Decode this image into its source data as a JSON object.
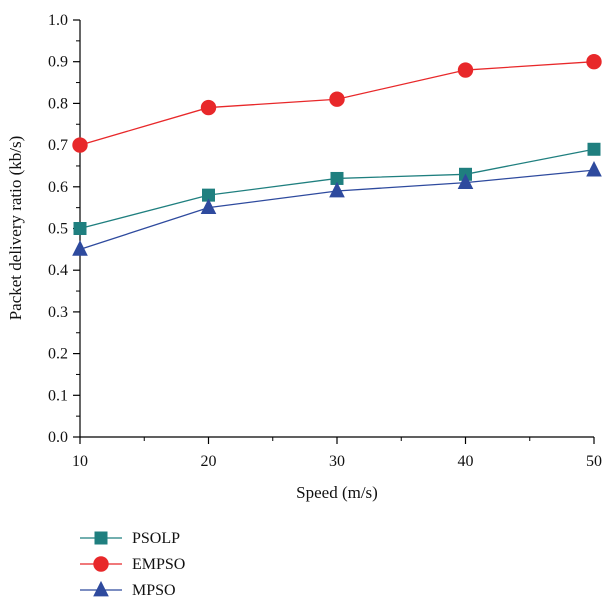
{
  "chart_data": {
    "type": "line",
    "title": "",
    "xlabel": "Speed (m/s)",
    "ylabel": "Packet delivery ratio (kb/s)",
    "x": [
      10,
      20,
      30,
      40,
      50
    ],
    "xlim": [
      10,
      50
    ],
    "ylim": [
      0.0,
      1.0
    ],
    "x_ticks": [
      "10",
      "20",
      "30",
      "40",
      "50"
    ],
    "y_ticks": [
      "0.0",
      "0.1",
      "0.2",
      "0.3",
      "0.4",
      "0.5",
      "0.6",
      "0.7",
      "0.8",
      "0.9",
      "1.0"
    ],
    "grid": false,
    "legend_position": "bottom-left below plot",
    "series": [
      {
        "name": "PSOLP",
        "values": [
          0.5,
          0.58,
          0.62,
          0.63,
          0.69
        ],
        "color": "#1f7f7f",
        "marker": "square"
      },
      {
        "name": "EMPSO",
        "values": [
          0.7,
          0.79,
          0.81,
          0.88,
          0.9
        ],
        "color": "#e8282a",
        "marker": "circle"
      },
      {
        "name": "MPSO",
        "values": [
          0.45,
          0.55,
          0.59,
          0.61,
          0.64
        ],
        "color": "#2e4a9e",
        "marker": "triangle"
      }
    ]
  }
}
